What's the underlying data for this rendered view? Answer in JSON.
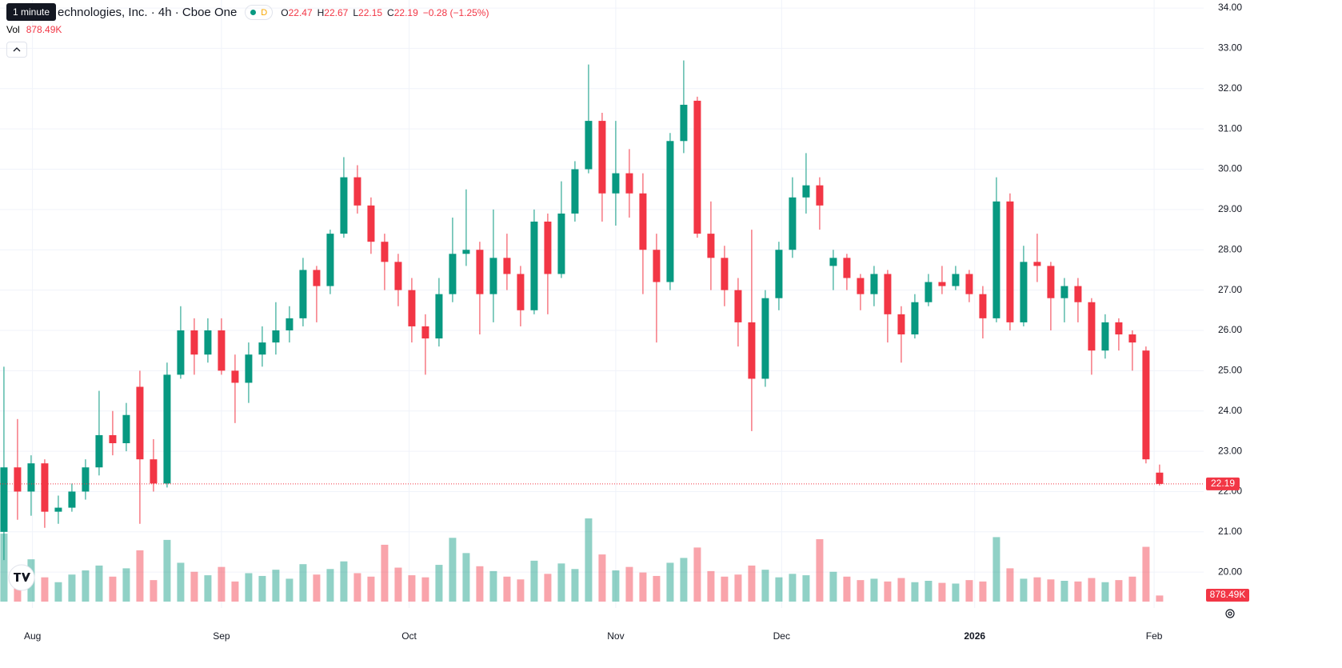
{
  "chart_data": {
    "type": "candlestick",
    "title": "echnologies, Inc. · 4h · Cboe One",
    "tooltip": "1 minute",
    "badge": "D",
    "ohlc_labels": [
      "O",
      "H",
      "L",
      "C"
    ],
    "change": "−0.28 (−1.25%)",
    "volume_label": "Vol",
    "volume_value": "878.49K",
    "up_color": "#089981",
    "down_color": "#f23645",
    "open": [
      21.0,
      22.6,
      22.0,
      22.7,
      21.5,
      21.6,
      22.0,
      22.6,
      23.4,
      23.2,
      24.6,
      22.8,
      22.2,
      24.9,
      26.0,
      25.4,
      26.0,
      25.0,
      24.7,
      25.4,
      25.7,
      26.0,
      26.3,
      27.5,
      27.1,
      28.4,
      29.8,
      29.1,
      28.2,
      27.7,
      27.0,
      26.1,
      25.8,
      26.9,
      27.9,
      28.0,
      26.9,
      27.8,
      27.4,
      26.5,
      28.7,
      27.4,
      28.9,
      30.0,
      31.2,
      29.4,
      29.9,
      29.4,
      28.0,
      27.2,
      30.7,
      31.7,
      28.4,
      27.8,
      27.0,
      26.2,
      24.8,
      26.8,
      28.0,
      29.3,
      29.6,
      27.6,
      27.8,
      27.3,
      26.9,
      27.4,
      26.4,
      25.9,
      26.7,
      27.2,
      27.1,
      27.4,
      26.9,
      26.3,
      29.2,
      26.2,
      27.7,
      27.6,
      26.8,
      27.1,
      26.7,
      25.5,
      26.2,
      25.9,
      25.5,
      22.47
    ],
    "high": [
      25.1,
      23.8,
      22.9,
      22.8,
      21.9,
      22.2,
      22.8,
      24.5,
      24.0,
      24.2,
      25.0,
      23.3,
      25.2,
      26.6,
      26.3,
      26.3,
      26.3,
      25.4,
      25.7,
      26.1,
      26.7,
      26.6,
      27.8,
      27.6,
      28.5,
      30.3,
      30.1,
      29.3,
      28.4,
      27.9,
      27.3,
      26.4,
      27.3,
      28.8,
      29.5,
      28.2,
      29.0,
      28.4,
      27.6,
      29.0,
      28.9,
      29.7,
      30.2,
      32.6,
      31.4,
      31.2,
      30.5,
      29.9,
      28.4,
      30.9,
      32.7,
      31.8,
      29.2,
      28.1,
      27.3,
      28.5,
      27.0,
      28.2,
      29.8,
      30.4,
      29.8,
      28.0,
      27.9,
      27.4,
      27.6,
      27.5,
      26.6,
      26.9,
      27.4,
      27.6,
      27.6,
      27.5,
      27.1,
      29.8,
      29.4,
      28.1,
      28.4,
      27.7,
      27.3,
      27.3,
      26.8,
      26.4,
      26.3,
      26.0,
      25.6,
      22.67
    ],
    "low": [
      20.3,
      21.3,
      21.4,
      21.1,
      21.2,
      21.5,
      21.8,
      22.4,
      22.9,
      23.0,
      21.2,
      22.0,
      22.1,
      24.8,
      24.9,
      25.2,
      24.9,
      23.7,
      24.2,
      25.1,
      25.4,
      25.7,
      26.1,
      26.2,
      26.9,
      28.3,
      28.9,
      27.9,
      27.0,
      26.6,
      25.7,
      24.9,
      25.6,
      26.7,
      27.6,
      25.9,
      26.2,
      27.0,
      26.1,
      26.4,
      26.4,
      27.3,
      28.7,
      29.9,
      28.7,
      28.6,
      28.8,
      26.9,
      25.7,
      27.0,
      30.4,
      28.3,
      27.0,
      26.6,
      25.6,
      23.5,
      24.6,
      26.5,
      27.8,
      28.9,
      28.5,
      27.0,
      27.0,
      26.5,
      26.6,
      25.7,
      25.2,
      25.8,
      26.6,
      26.9,
      27.0,
      26.7,
      25.8,
      26.2,
      26.0,
      26.1,
      27.2,
      26.0,
      26.2,
      26.2,
      24.9,
      25.3,
      25.5,
      25.0,
      22.7,
      22.15
    ],
    "close": [
      22.6,
      22.0,
      22.7,
      21.5,
      21.6,
      22.0,
      22.6,
      23.4,
      23.2,
      23.9,
      22.8,
      22.2,
      24.9,
      26.0,
      25.4,
      26.0,
      25.0,
      24.7,
      25.4,
      25.7,
      26.0,
      26.3,
      27.5,
      27.1,
      28.4,
      29.8,
      29.1,
      28.2,
      27.7,
      27.0,
      26.1,
      25.8,
      26.9,
      27.9,
      28.0,
      26.9,
      27.8,
      27.4,
      26.5,
      28.7,
      27.4,
      28.9,
      30.0,
      31.2,
      29.4,
      29.9,
      29.4,
      28.0,
      27.2,
      30.7,
      31.6,
      28.4,
      27.8,
      27.0,
      26.2,
      24.8,
      26.8,
      28.0,
      29.3,
      29.6,
      29.1,
      27.8,
      27.3,
      26.9,
      27.4,
      26.4,
      25.9,
      26.7,
      27.2,
      27.1,
      27.4,
      26.9,
      26.3,
      29.2,
      26.2,
      27.7,
      27.6,
      26.8,
      27.1,
      26.7,
      25.5,
      26.2,
      25.9,
      25.7,
      22.8,
      22.19
    ],
    "volume": [
      9800000,
      4200000,
      6100000,
      3500000,
      2800000,
      3900000,
      4500000,
      5200000,
      3600000,
      4800000,
      7400000,
      3100000,
      8900000,
      5600000,
      4300000,
      3800000,
      5000000,
      2900000,
      4100000,
      3700000,
      4600000,
      3300000,
      5400000,
      3900000,
      4700000,
      5800000,
      4100000,
      3600000,
      8200000,
      4900000,
      3800000,
      3500000,
      5300000,
      9200000,
      7000000,
      5100000,
      4400000,
      3600000,
      3200000,
      5900000,
      4000000,
      5500000,
      4700000,
      12000000,
      6800000,
      4500000,
      5000000,
      4200000,
      3700000,
      5600000,
      6300000,
      7800000,
      4400000,
      3600000,
      3900000,
      5200000,
      4600000,
      3500000,
      4000000,
      3800000,
      9000000,
      4300000,
      3600000,
      3100000,
      3300000,
      2900000,
      3400000,
      2800000,
      3000000,
      2700000,
      2600000,
      3100000,
      2900000,
      9300000,
      4800000,
      3300000,
      3500000,
      3200000,
      3000000,
      2900000,
      3400000,
      2800000,
      3100000,
      3600000,
      7900000,
      878490
    ],
    "xlim": [
      -0.29,
      88.24
    ],
    "xticks": [
      {
        "value": 2.1,
        "label": "Aug"
      },
      {
        "value": 16,
        "label": "Sep"
      },
      {
        "value": 29.8,
        "label": "Oct"
      },
      {
        "value": 45,
        "label": "Nov"
      },
      {
        "value": 57.2,
        "label": "Dec"
      },
      {
        "value": 71.4,
        "label": "2026"
      },
      {
        "value": 84.6,
        "label": "Feb"
      }
    ],
    "ylim": [
      19.11,
      34.2
    ],
    "yticks": [
      {
        "value": 20,
        "label": "20.00"
      },
      {
        "value": 21,
        "label": "21.00"
      },
      {
        "value": 22,
        "label": "22.00"
      },
      {
        "value": 23,
        "label": "23.00"
      },
      {
        "value": 24,
        "label": "24.00"
      },
      {
        "value": 25,
        "label": "25.00"
      },
      {
        "value": 26,
        "label": "26.00"
      },
      {
        "value": 27,
        "label": "27.00"
      },
      {
        "value": 28,
        "label": "28.00"
      },
      {
        "value": 29,
        "label": "29.00"
      },
      {
        "value": 30,
        "label": "30.00"
      },
      {
        "value": 31,
        "label": "31.00"
      },
      {
        "value": 32,
        "label": "32.00"
      },
      {
        "value": 33,
        "label": "33.00"
      },
      {
        "value": 34,
        "label": "34.00"
      }
    ],
    "grid": true
  }
}
